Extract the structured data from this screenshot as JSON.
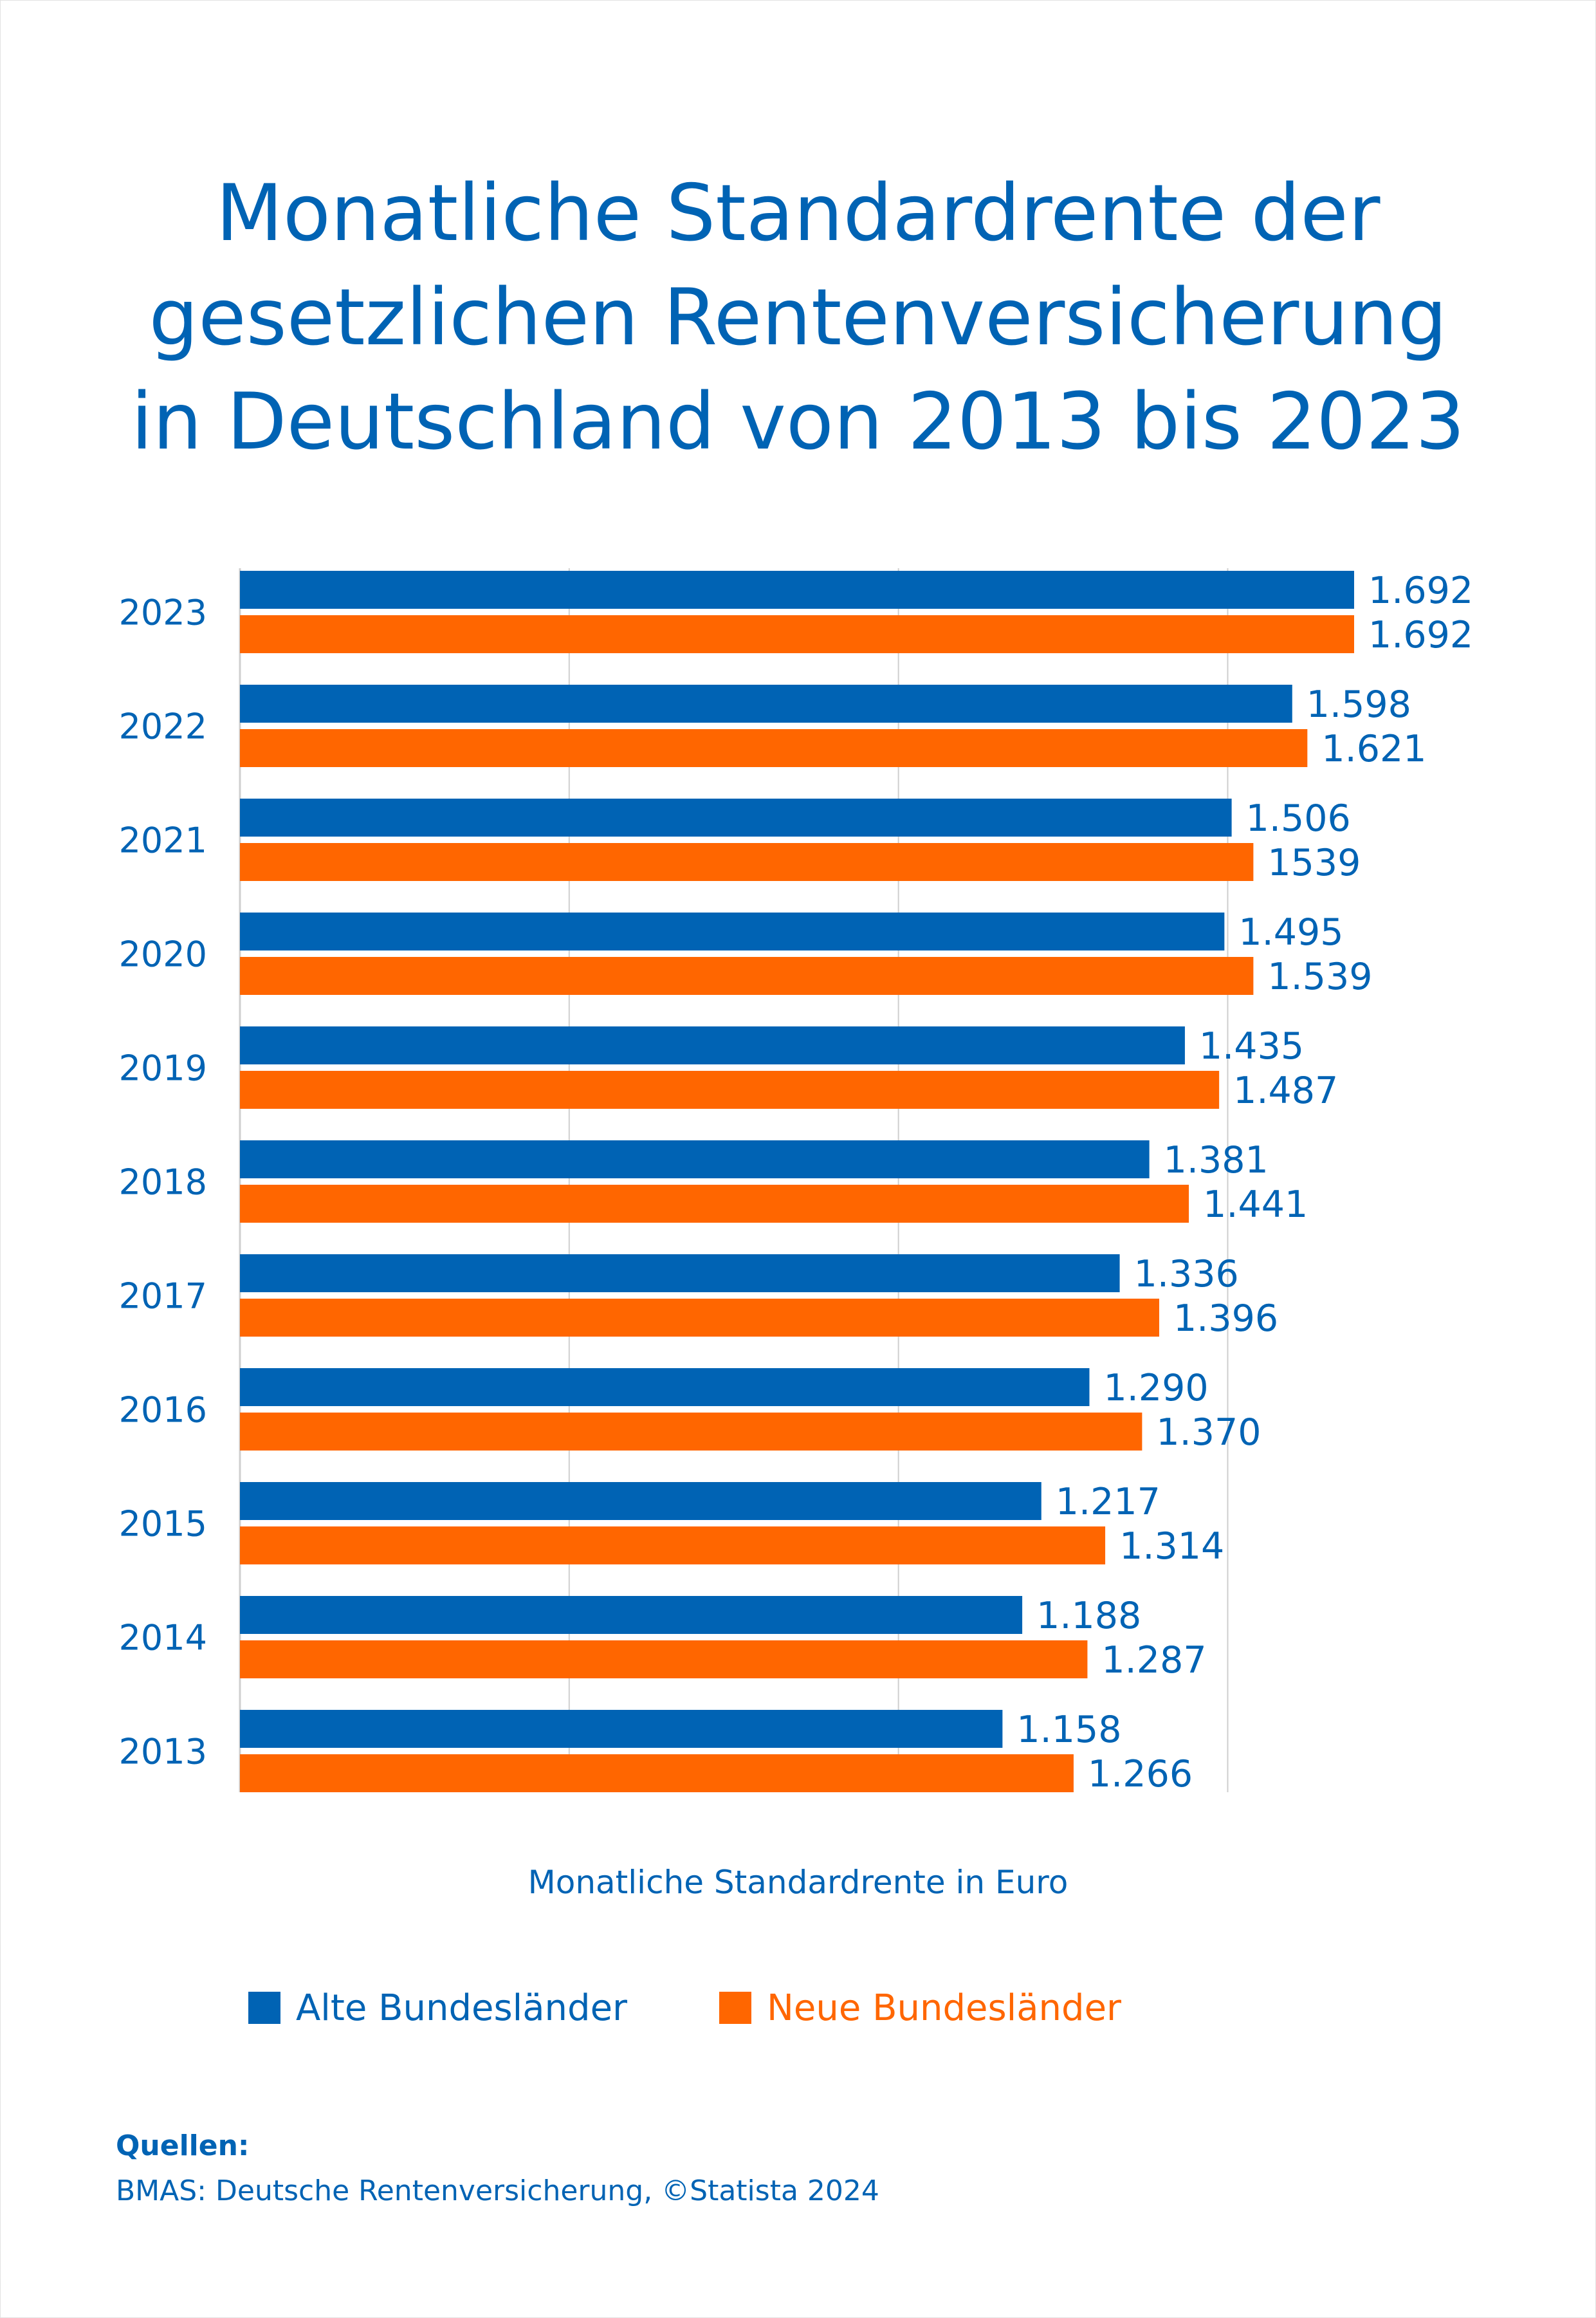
{
  "title": {
    "line1": "Monatliche Standardrente der",
    "line2": "gesetzlichen Rentenversicherung",
    "line3": "in Deutschland von 2013 bis 2023"
  },
  "colors": {
    "blue": "#0063b4",
    "orange": "#ff6600",
    "grid": "#cfcfcf"
  },
  "chart_data": {
    "type": "bar",
    "orientation": "horizontal",
    "categories": [
      "2023",
      "2022",
      "2021",
      "2020",
      "2019",
      "2018",
      "2017",
      "2016",
      "2015",
      "2014",
      "2013"
    ],
    "series": [
      {
        "name": "Alte Bundesländer",
        "values": [
          1692,
          1598,
          1506,
          1495,
          1435,
          1381,
          1336,
          1290,
          1217,
          1188,
          1158
        ],
        "labels": [
          "1.692",
          "1.598",
          "1.506",
          "1.495",
          "1.435",
          "1.381",
          "1.336",
          "1.290",
          "1.217",
          "1.188",
          "1.158"
        ]
      },
      {
        "name": "Neue Bundesländer",
        "values": [
          1692,
          1621,
          1539,
          1539,
          1487,
          1441,
          1396,
          1370,
          1314,
          1287,
          1266
        ],
        "labels": [
          "1.692",
          "1.621",
          "1539",
          "1.539",
          "1.487",
          "1.441",
          "1.396",
          "1.370",
          "1.314",
          "1.287",
          "1.266"
        ]
      }
    ],
    "xlabel": "Monatliche Standardrente in Euro",
    "xlim": [
      0,
      1700
    ],
    "gridlines": [
      500,
      1000,
      1500
    ],
    "legend_position": "bottom"
  },
  "legend": {
    "alte": "Alte Bundesländer",
    "neue": "Neue Bundesländer"
  },
  "sources": {
    "heading": "Quellen:",
    "text": "BMAS: Deutsche Rentenversicherung, ©Statista 2024"
  }
}
